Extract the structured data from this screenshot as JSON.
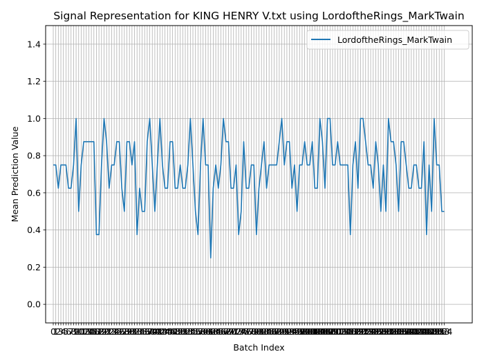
{
  "chart_data": {
    "type": "line",
    "title": "Signal Representation for KING HENRY V.txt using LordoftheRings_MarkTwain",
    "xlabel": "Batch Index",
    "ylabel": "Mean Prediction Value",
    "xlim": [
      -3,
      165
    ],
    "ylim": [
      -0.1,
      1.5
    ],
    "yticks": [
      0.0,
      0.2,
      0.4,
      0.6,
      0.8,
      1.0,
      1.2,
      1.4
    ],
    "grid": true,
    "legend": "top-right",
    "series": [
      {
        "name": "LordoftheRings_MarkTwain",
        "color": "#1f77b4",
        "values": [
          0.75,
          0.75,
          0.625,
          0.75,
          0.75,
          0.75,
          0.625,
          0.625,
          0.75,
          1.0,
          0.5,
          0.75,
          0.875,
          0.875,
          0.875,
          0.875,
          0.875,
          0.375,
          0.375,
          0.75,
          1.0,
          0.875,
          0.625,
          0.75,
          0.75,
          0.875,
          0.875,
          0.625,
          0.5,
          0.875,
          0.875,
          0.75,
          0.875,
          0.375,
          0.625,
          0.5,
          0.5,
          0.875,
          1.0,
          0.75,
          0.5,
          0.75,
          1.0,
          0.75,
          0.625,
          0.625,
          0.875,
          0.875,
          0.625,
          0.625,
          0.75,
          0.625,
          0.625,
          0.75,
          1.0,
          0.75,
          0.5,
          0.375,
          0.75,
          1.0,
          0.75,
          0.75,
          0.25,
          0.625,
          0.75,
          0.625,
          0.75,
          1.0,
          0.875,
          0.875,
          0.625,
          0.625,
          0.75,
          0.375,
          0.5,
          0.875,
          0.625,
          0.625,
          0.75,
          0.75,
          0.375,
          0.625,
          0.75,
          0.875,
          0.625,
          0.75,
          0.75,
          0.75,
          0.75,
          0.875,
          1.0,
          0.75,
          0.875,
          0.875,
          0.625,
          0.75,
          0.5,
          0.75,
          0.75,
          0.875,
          0.75,
          0.75,
          0.875,
          0.625,
          0.625,
          1.0,
          0.875,
          0.625,
          1.0,
          1.0,
          0.75,
          0.75,
          0.875,
          0.75,
          0.75,
          0.75,
          0.75,
          0.375,
          0.75,
          0.875,
          0.625,
          1.0,
          1.0,
          0.875,
          0.75,
          0.75,
          0.625,
          0.875,
          0.75,
          0.5,
          0.75,
          0.5,
          1.0,
          0.875,
          0.875,
          0.75,
          0.5,
          0.875,
          0.875,
          0.75,
          0.625,
          0.625,
          0.75,
          0.75,
          0.625,
          0.625,
          0.875,
          0.375,
          0.75,
          0.5,
          1.0,
          0.75,
          0.75,
          0.5,
          0.5
        ]
      }
    ]
  }
}
